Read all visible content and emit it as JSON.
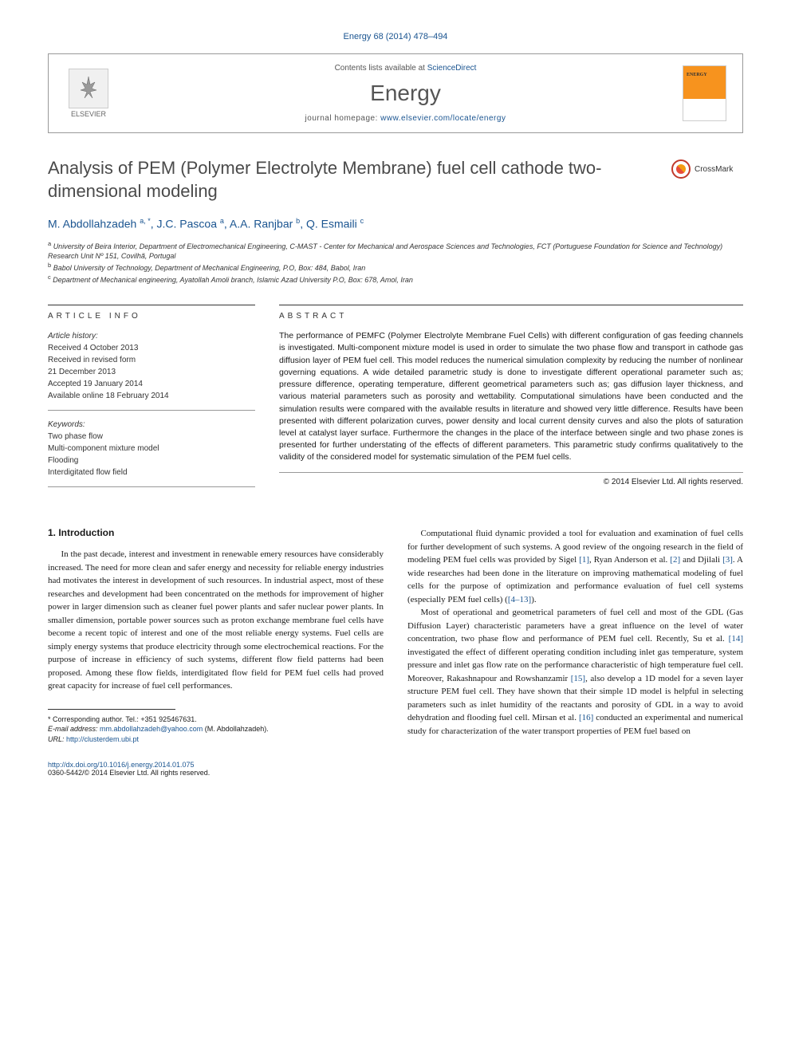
{
  "citation": "Energy 68 (2014) 478–494",
  "header": {
    "publisher": "ELSEVIER",
    "contents_prefix": "Contents lists available at ",
    "contents_link": "ScienceDirect",
    "journal": "Energy",
    "homepage_prefix": "journal homepage: ",
    "homepage_url": "www.elsevier.com/locate/energy"
  },
  "crossmark_label": "CrossMark",
  "title": "Analysis of PEM (Polymer Electrolyte Membrane) fuel cell cathode two-dimensional modeling",
  "authors_html": "M. Abdollahzadeh <sup>a, *</sup>, J.C. Pascoa <sup>a</sup>, A.A. Ranjbar <sup>b</sup>, Q. Esmaili <sup>c</sup>",
  "affiliations": {
    "a": "University of Beira Interior, Department of Electromechanical Engineering, C-MAST - Center for Mechanical and Aerospace Sciences and Technologies, FCT (Portuguese Foundation for Science and Technology) Research Unit Nº 151, Covilhã, Portugal",
    "b": "Babol University of Technology, Department of Mechanical Engineering, P.O, Box: 484, Babol, Iran",
    "c": "Department of Mechanical engineering, Ayatollah Amoli branch, Islamic Azad University P.O, Box: 678, Amol, Iran"
  },
  "article_info": {
    "header": "ARTICLE INFO",
    "history_label": "Article history:",
    "received": "Received 4 October 2013",
    "revised1": "Received in revised form",
    "revised2": "21 December 2013",
    "accepted": "Accepted 19 January 2014",
    "online": "Available online 18 February 2014",
    "keywords_label": "Keywords:",
    "keywords": [
      "Two phase flow",
      "Multi-component mixture model",
      "Flooding",
      "Interdigitated flow field"
    ]
  },
  "abstract": {
    "header": "ABSTRACT",
    "text": "The performance of PEMFC (Polymer Electrolyte Membrane Fuel Cells) with different configuration of gas feeding channels is investigated. Multi-component mixture model is used in order to simulate the two phase flow and transport in cathode gas diffusion layer of PEM fuel cell. This model reduces the numerical simulation complexity by reducing the number of nonlinear governing equations. A wide detailed parametric study is done to investigate different operational parameter such as; pressure difference, operating temperature, different geometrical parameters such as; gas diffusion layer thickness, and various material parameters such as porosity and wettability. Computational simulations have been conducted and the simulation results were compared with the available results in literature and showed very little difference. Results have been presented with different polarization curves, power density and local current density curves and also the plots of saturation level at catalyst layer surface. Furthermore the changes in the place of the interface between single and two phase zones is presented for further understating of the effects of different parameters. This parametric study confirms qualitatively to the validity of the considered model for systematic simulation of the PEM fuel cells.",
    "copyright": "© 2014 Elsevier Ltd. All rights reserved."
  },
  "intro": {
    "heading": "1. Introduction",
    "p1": "In the past decade, interest and investment in renewable emery resources have considerably increased. The need for more clean and safer energy and necessity for reliable energy industries had motivates the interest in development of such resources. In industrial aspect, most of these researches and development had been concentrated on the methods for improvement of higher power in larger dimension such as cleaner fuel power plants and safer nuclear power plants. In smaller dimension, portable power sources such as proton exchange membrane fuel cells have become a recent topic of interest and one of the most reliable energy systems. Fuel cells are simply energy systems that produce electricity through some electrochemical reactions. For the purpose of increase in efficiency of such systems, different flow field patterns had been proposed. Among these flow fields, interdigitated flow field for PEM fuel cells had proved great capacity for increase of fuel cell performances.",
    "p2_parts": {
      "a": "Computational fluid dynamic provided a tool for evaluation and examination of fuel cells for further development of such systems. A good review of the ongoing research in the field of modeling PEM fuel cells was provided by Sigel ",
      "r1": "[1]",
      "b": ", Ryan Anderson et al. ",
      "r2": "[2]",
      "c": " and Djilali ",
      "r3": "[3]",
      "d": ". A wide researches had been done in the literature on improving mathematical modeling of fuel cells for the purpose of optimization and performance evaluation of fuel cell systems (especially PEM fuel cells) (",
      "r4": "[4–13]",
      "e": ")."
    },
    "p3_parts": {
      "a": "Most of operational and geometrical parameters of fuel cell and most of the GDL (Gas Diffusion Layer) characteristic parameters have a great influence on the level of water concentration, two phase flow and performance of PEM fuel cell. Recently, Su et al. ",
      "r14": "[14]",
      "b": " investigated the effect of different operating condition including inlet gas temperature, system pressure and inlet gas flow rate on the performance characteristic of high temperature fuel cell. Moreover, Rakashnapour and Rowshanzamir ",
      "r15": "[15]",
      "c": ", also develop a 1D model for a seven layer structure PEM fuel cell. They have shown that their simple 1D model is helpful in selecting parameters such as inlet humidity of the reactants and porosity of GDL in a way to avoid dehydration and flooding fuel cell. Mirsan et al. ",
      "r16": "[16]",
      "d": " conducted an experimental and numerical study for characterization of the water transport properties of PEM fuel based on"
    }
  },
  "corresponding": {
    "label": "* Corresponding author. Tel.: +351 925467631.",
    "email_label": "E-mail address: ",
    "email": "mm.abdollahzadeh@yahoo.com",
    "email_suffix": " (M. Abdollahzadeh).",
    "url_label": "URL: ",
    "url": "http://clusterdem.ubi.pt"
  },
  "footer": {
    "doi": "http://dx.doi.org/10.1016/j.energy.2014.01.075",
    "issn": "0360-5442/© 2014 Elsevier Ltd. All rights reserved."
  },
  "colors": {
    "link": "#1a5490",
    "text": "#1a1a1a",
    "muted": "#555555",
    "border": "#999999",
    "cover_accent": "#f7931e"
  }
}
